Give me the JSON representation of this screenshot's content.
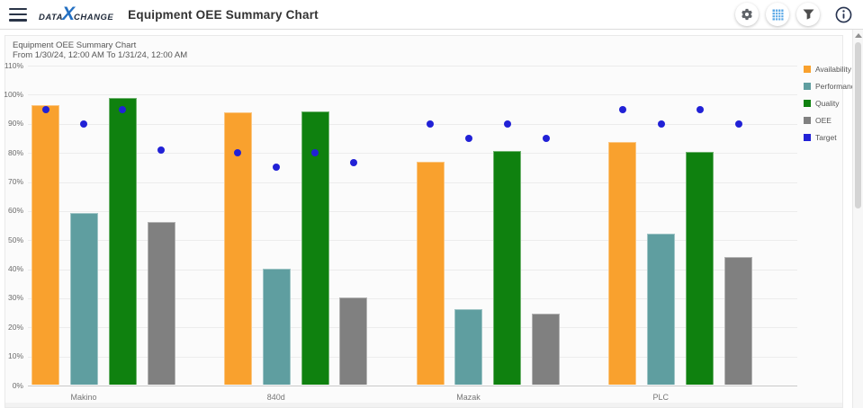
{
  "header": {
    "logo": {
      "part1": "DATA",
      "x": "X",
      "part2": "CHANGE"
    },
    "title": "Equipment OEE Summary Chart",
    "icons": [
      "menu-icon",
      "gear-icon",
      "data-grid-icon",
      "filter-icon",
      "info-icon"
    ],
    "grid_icon_color": "#58a7e6",
    "info_icon_color": "#26324f"
  },
  "chart_data": {
    "type": "bar",
    "title": "Equipment OEE Summary Chart",
    "subtitle": "From 1/30/24, 12:00 AM To 1/31/24, 12:00 AM",
    "categories": [
      "Makino",
      "840d",
      "Mazak",
      "PLC"
    ],
    "series": [
      {
        "name": "Availability",
        "color": "#f9a12e",
        "values": [
          96,
          93.5,
          76.5,
          83.5
        ],
        "targets": [
          95,
          80,
          90,
          95
        ]
      },
      {
        "name": "Performance",
        "color": "#5f9ea0",
        "values": [
          59,
          40,
          26,
          52
        ],
        "targets": [
          90,
          75,
          85,
          90
        ]
      },
      {
        "name": "Quality",
        "color": "#0f810f",
        "values": [
          98.5,
          94,
          80.5,
          80
        ],
        "targets": [
          95,
          80,
          90,
          95
        ]
      },
      {
        "name": "OEE",
        "color": "#808080",
        "values": [
          56,
          30,
          24.5,
          44
        ],
        "targets": [
          81,
          76.5,
          85,
          90
        ]
      }
    ],
    "target": {
      "name": "Target",
      "color": "#2121d6",
      "marker": "dot"
    },
    "y_axis": {
      "min": 0,
      "max": 110,
      "step": 10,
      "format": "percent",
      "tick_labels": [
        "0%",
        "10%",
        "20%",
        "30%",
        "40%",
        "50%",
        "60%",
        "70%",
        "80%",
        "90%",
        "100%",
        "110%"
      ]
    },
    "grid": true,
    "legend_position": "right",
    "legend": [
      "Availability",
      "Performance",
      "Quality",
      "OEE",
      "Target"
    ]
  }
}
